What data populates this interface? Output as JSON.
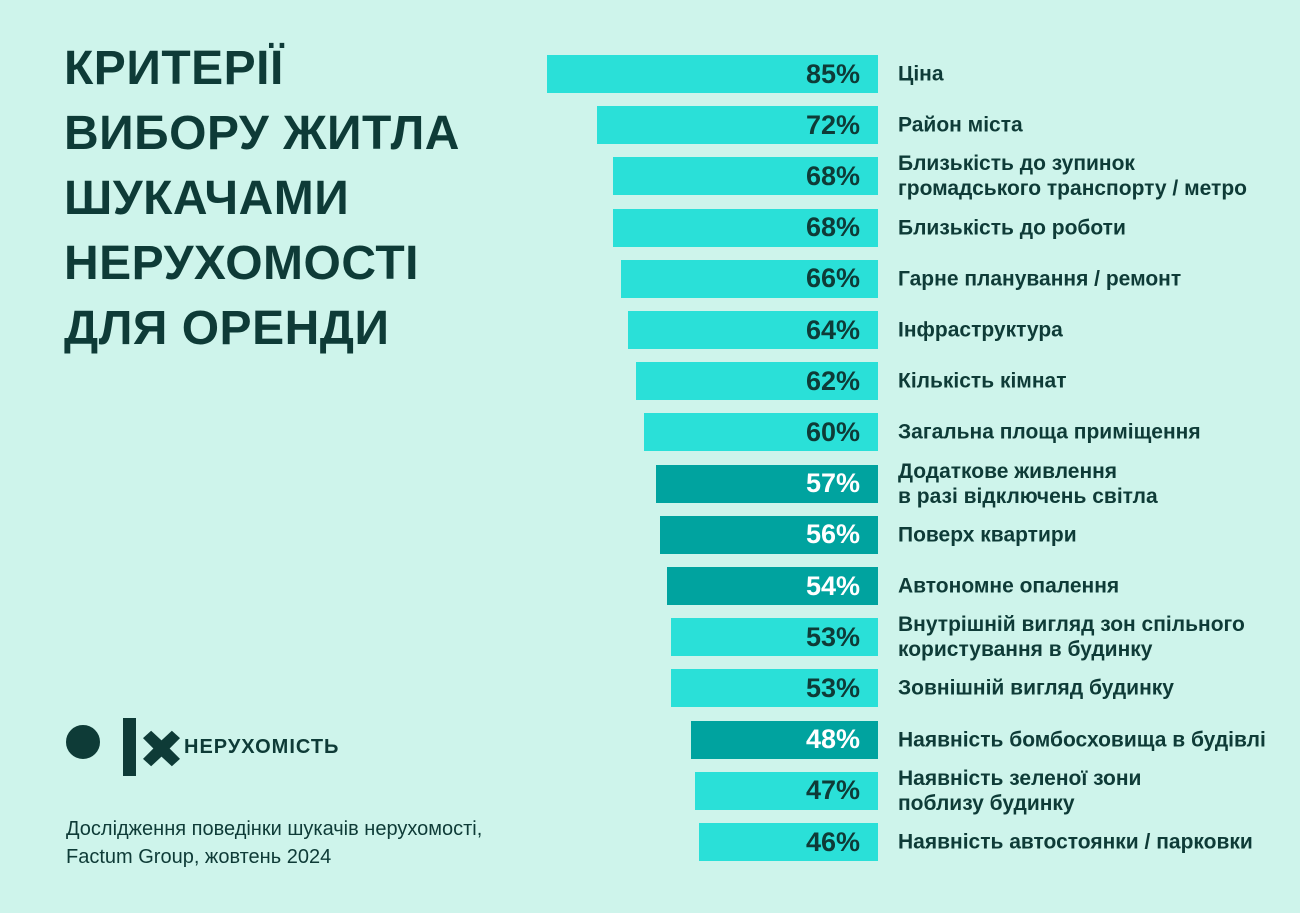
{
  "title": {
    "lines": [
      "КРИТЕРІЇ",
      "ВИБОРУ ЖИТЛА",
      "ШУКАЧАМИ",
      "НЕРУХОМОСТІ",
      "ДЛЯ ОРЕНДИ"
    ]
  },
  "logo": {
    "icon": "olx-logo",
    "product": "НЕРУХОМІСТЬ"
  },
  "source": {
    "lines": [
      "Дослідження поведінки шукачів нерухомості,",
      "Factum Group, жовтень 2024"
    ]
  },
  "colors": {
    "background": "#CEF4EB",
    "bar_light": "#2AE0D8",
    "bar_dark": "#00A39F",
    "text_dark": "#0E3B37",
    "text_on_dark_bar": "#FFFFFF"
  },
  "chart_data": {
    "type": "bar",
    "orientation": "horizontal",
    "unit": "%",
    "value_range": [
      0,
      100
    ],
    "grid": false,
    "legend": false,
    "bars_right_aligned": true,
    "title": "КРИТЕРІЇ ВИБОРУ ЖИТЛА ШУКАЧАМИ НЕРУХОМОСТІ ДЛЯ ОРЕНДИ",
    "categories": [
      "Ціна",
      "Район міста",
      "Близькість до зупинок громадського транспорту / метро",
      "Близькість до роботи",
      "Гарне планування / ремонт",
      "Інфраструктура",
      "Кількість кімнат",
      "Загальна площа приміщення",
      "Додаткове живлення в разі відключень світла",
      "Поверх квартири",
      "Автономне опалення",
      "Внутрішній вигляд зон спільного користування в будинку",
      "Зовнішній вигляд будинку",
      "Наявність бомбосховища в будівлі",
      "Наявність зеленої зони поблизу будинку",
      "Наявність автостоянки / парковки"
    ],
    "values": [
      85,
      72,
      68,
      68,
      66,
      64,
      62,
      60,
      57,
      56,
      54,
      53,
      53,
      48,
      47,
      46
    ],
    "bar_styles": [
      "light",
      "light",
      "light",
      "light",
      "light",
      "light",
      "light",
      "light",
      "dark",
      "dark",
      "dark",
      "light",
      "light",
      "dark",
      "light",
      "light"
    ],
    "label_lines": [
      [
        "Ціна"
      ],
      [
        "Район міста"
      ],
      [
        "Близькість до зупинок",
        "громадського транспорту / метро"
      ],
      [
        "Близькість до роботи"
      ],
      [
        "Гарне планування / ремонт"
      ],
      [
        "Інфраструктура"
      ],
      [
        "Кількість кімнат"
      ],
      [
        "Загальна площа приміщення"
      ],
      [
        "Додаткове живлення",
        "в разі відключень світла"
      ],
      [
        "Поверх квартири"
      ],
      [
        "Автономне опалення"
      ],
      [
        "Внутрішній вигляд зон спільного",
        "користування в будинку"
      ],
      [
        "Зовнішній вигляд будинку"
      ],
      [
        "Наявність бомбосховища в будівлі"
      ],
      [
        "Наявність зеленої зони",
        "поблизу будинку"
      ],
      [
        "Наявність автостоянки / парковки"
      ]
    ]
  }
}
